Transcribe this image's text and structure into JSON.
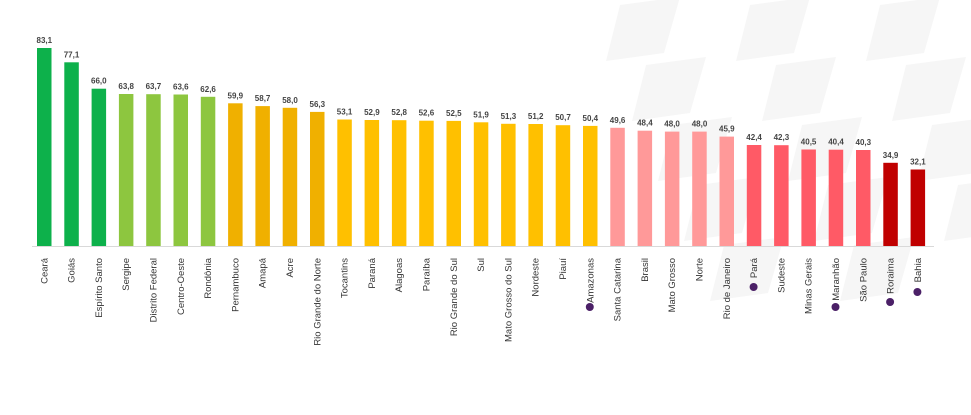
{
  "chart_data": {
    "type": "bar",
    "title": "",
    "xlabel": "",
    "ylabel": "",
    "ylim": [
      0,
      85
    ],
    "grid": false,
    "legend": "none",
    "decimal_separator": ",",
    "categories": [
      "Ceará",
      "Goiás",
      "Espírito Santo",
      "Sergipe",
      "Distrito Federal",
      "Centro-Oeste",
      "Rondônia",
      "Pernambuco",
      "Amapá",
      "Acre",
      "Rio Grande do Norte",
      "Tocantins",
      "Paraná",
      "Alagoas",
      "Paraíba",
      "Rio Grande do Sul",
      "Sul",
      "Mato Grosso do Sul",
      "Nordeste",
      "Piauí",
      "Amazonas",
      "Santa Catarina",
      "Brasil",
      "Mato Grosso",
      "Norte",
      "Rio de Janeiro",
      "Pará",
      "Sudeste",
      "Minas Gerais",
      "Maranhão",
      "São Paulo",
      "Roraima",
      "Bahia"
    ],
    "values": [
      83.1,
      77.1,
      66.0,
      63.8,
      63.7,
      63.6,
      62.6,
      59.9,
      58.7,
      58.0,
      56.3,
      53.1,
      52.9,
      52.8,
      52.6,
      52.5,
      51.9,
      51.3,
      51.2,
      50.7,
      50.4,
      49.6,
      48.4,
      48.0,
      48.0,
      45.9,
      42.4,
      42.3,
      40.5,
      40.4,
      40.3,
      34.9,
      32.1
    ],
    "bar_colors": [
      "#0db14b",
      "#0db14b",
      "#0db14b",
      "#8dc63f",
      "#8dc63f",
      "#8dc63f",
      "#8dc63f",
      "#f0b000",
      "#f0b000",
      "#f0b000",
      "#f0b000",
      "#ffc000",
      "#ffc000",
      "#ffc000",
      "#ffc000",
      "#ffc000",
      "#ffc000",
      "#ffc000",
      "#ffc000",
      "#ffc000",
      "#ffc000",
      "#ff9999",
      "#ff9999",
      "#ff9999",
      "#ff9999",
      "#ff9999",
      "#ff5a66",
      "#ff5a66",
      "#ff5a66",
      "#ff5a66",
      "#ff5a66",
      "#c00000",
      "#c00000"
    ],
    "marked_categories": [
      "Amazonas",
      "Pará",
      "Maranhão",
      "Roraima",
      "Bahia"
    ],
    "marker_color": "#4b2067"
  }
}
